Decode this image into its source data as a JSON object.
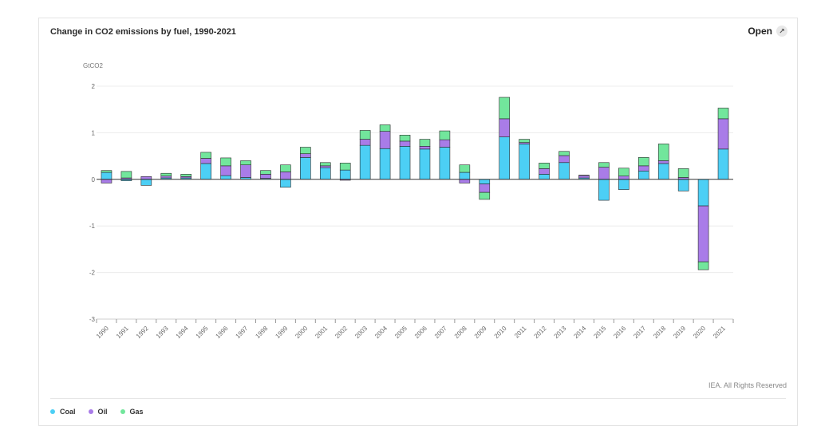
{
  "header": {
    "title": "Change in CO2 emissions by fuel, 1990-2021",
    "open_label": "Open"
  },
  "footer": {
    "credit": "IEA. All Rights Reserved"
  },
  "colors": {
    "coal": "#4ccff5",
    "oil": "#a97ce8",
    "gas": "#72e69c",
    "grid": "#ececec",
    "axis": "#333333"
  },
  "chart_data": {
    "type": "bar",
    "stacked": true,
    "ylabel": "GtCO2",
    "ylim": [
      -3,
      2
    ],
    "yticks": [
      2,
      1,
      0,
      -1,
      -2,
      -3
    ],
    "grid": true,
    "legend_position": "bottom-left",
    "categories": [
      "1990",
      "1991",
      "1992",
      "1993",
      "1994",
      "1995",
      "1996",
      "1997",
      "1998",
      "1999",
      "2000",
      "2001",
      "2002",
      "2003",
      "2004",
      "2005",
      "2006",
      "2007",
      "2008",
      "2009",
      "2010",
      "2011",
      "2012",
      "2013",
      "2014",
      "2015",
      "2016",
      "2017",
      "2018",
      "2019",
      "2020",
      "2021"
    ],
    "series": [
      {
        "name": "Coal",
        "color": "#4ccff5",
        "values": [
          0.15,
          -0.03,
          -0.13,
          0.03,
          0.03,
          0.34,
          0.08,
          0.04,
          0.02,
          -0.17,
          0.47,
          0.25,
          0.2,
          0.73,
          0.66,
          0.71,
          0.65,
          0.69,
          0.15,
          -0.1,
          0.91,
          0.76,
          0.11,
          0.36,
          0.03,
          -0.45,
          -0.22,
          0.18,
          0.34,
          -0.25,
          -0.57,
          0.65
        ]
      },
      {
        "name": "Oil",
        "color": "#a97ce8",
        "values": [
          -0.08,
          0.03,
          0.06,
          0.04,
          0.03,
          0.11,
          0.21,
          0.27,
          0.09,
          0.16,
          0.08,
          0.04,
          -0.02,
          0.13,
          0.37,
          0.11,
          0.06,
          0.16,
          -0.08,
          -0.18,
          0.39,
          0.03,
          0.12,
          0.15,
          0.05,
          0.26,
          0.07,
          0.11,
          0.06,
          0.04,
          -1.2,
          0.65
        ]
      },
      {
        "name": "Gas",
        "color": "#72e69c",
        "values": [
          0.04,
          0.14,
          0.0,
          0.06,
          0.05,
          0.13,
          0.17,
          0.09,
          0.08,
          0.15,
          0.14,
          0.07,
          0.15,
          0.19,
          0.14,
          0.13,
          0.15,
          0.19,
          0.16,
          -0.15,
          0.46,
          0.07,
          0.12,
          0.09,
          0.01,
          0.1,
          0.17,
          0.18,
          0.36,
          0.19,
          -0.17,
          0.23
        ]
      }
    ]
  },
  "legend": [
    {
      "label": "Coal",
      "color": "#4ccff5"
    },
    {
      "label": "Oil",
      "color": "#a97ce8"
    },
    {
      "label": "Gas",
      "color": "#72e69c"
    }
  ]
}
